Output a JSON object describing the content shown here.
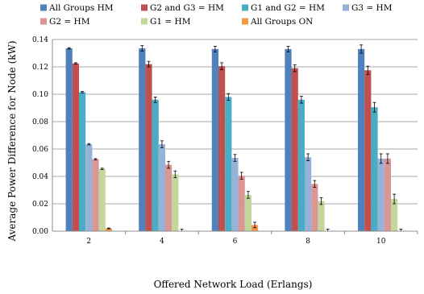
{
  "chart_data": {
    "type": "bar",
    "xlabel": "Offered Network Load (Erlangs)",
    "ylabel": "Average Power Difference  for  Node (kW)",
    "categories": [
      "2",
      "4",
      "6",
      "8",
      "10"
    ],
    "ylim": [
      0,
      0.14
    ],
    "yticks": [
      "0.00",
      "0.02",
      "0.04",
      "0.06",
      "0.08",
      "0.10",
      "0.12",
      "0.14"
    ],
    "grid": "horizontal",
    "legend_position": "top",
    "series": [
      {
        "name": "All Groups HM",
        "color": "#4f81bd",
        "values": [
          0.1335,
          0.1335,
          0.133,
          0.133,
          0.133
        ],
        "errors": [
          0.0005,
          0.002,
          0.002,
          0.002,
          0.003
        ]
      },
      {
        "name": "G2 and G3 = HM",
        "color": "#c0504d",
        "values": [
          0.1225,
          0.122,
          0.1205,
          0.119,
          0.1175
        ],
        "errors": [
          0.0005,
          0.002,
          0.0025,
          0.0025,
          0.003
        ]
      },
      {
        "name": "G1 and G2 = HM",
        "color": "#4bacc6",
        "values": [
          0.1015,
          0.096,
          0.098,
          0.096,
          0.0905
        ],
        "errors": [
          0.0005,
          0.002,
          0.0025,
          0.0025,
          0.0035
        ]
      },
      {
        "name": "G3 = HM",
        "color": "#95b3d7",
        "values": [
          0.0635,
          0.0635,
          0.0535,
          0.054,
          0.053
        ],
        "errors": [
          0.0005,
          0.0025,
          0.0025,
          0.0025,
          0.0035
        ]
      },
      {
        "name": "G2 = HM",
        "color": "#d99694",
        "values": [
          0.0525,
          0.0485,
          0.0405,
          0.0345,
          0.053
        ],
        "errors": [
          0.0005,
          0.0025,
          0.0025,
          0.0025,
          0.0035
        ]
      },
      {
        "name": "G1 = HM",
        "color": "#c3d69b",
        "values": [
          0.0455,
          0.0415,
          0.0265,
          0.022,
          0.0235
        ],
        "errors": [
          0.0005,
          0.0025,
          0.0025,
          0.0025,
          0.0035
        ]
      },
      {
        "name": "All Groups ON",
        "color": "#f79646",
        "values": [
          0.002,
          0.0,
          0.0045,
          0.0,
          0.0
        ],
        "errors": [
          0.0003,
          0.0015,
          0.002,
          0.0015,
          0.0015
        ]
      }
    ]
  }
}
